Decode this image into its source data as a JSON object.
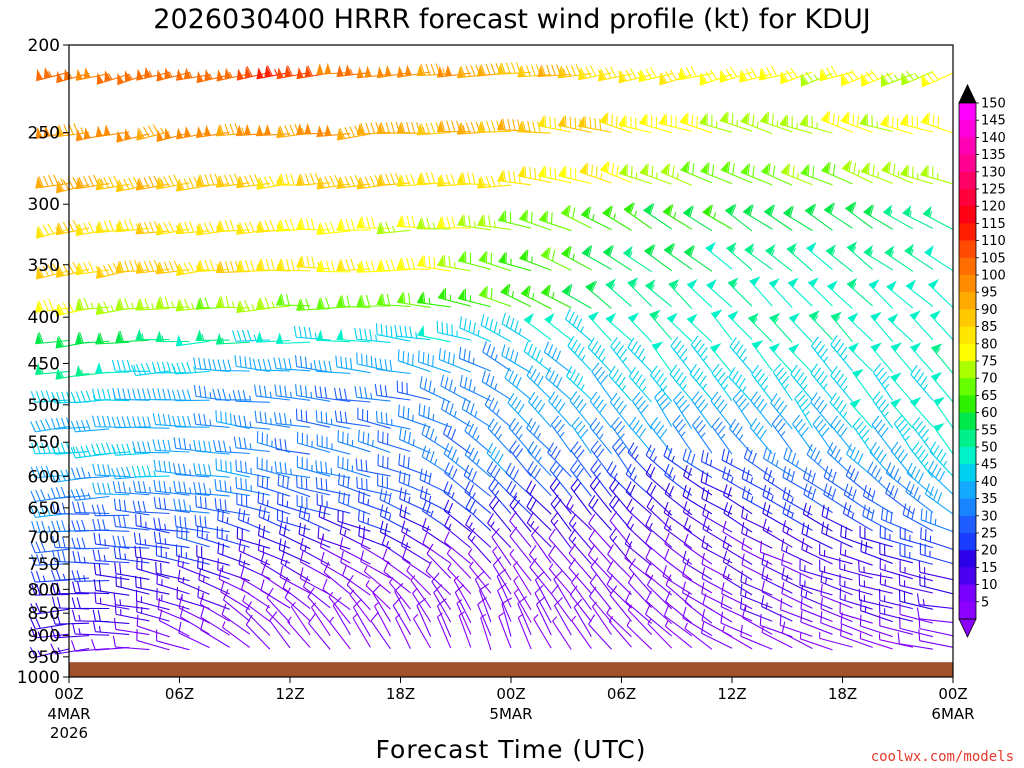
{
  "chart_data": {
    "type": "wind-barb-time-height",
    "title": "2026030400 HRRR forecast wind profile (kt) for KDUJ",
    "xlabel": "Forecast Time (UTC)",
    "ylabel": "",
    "y_scale": "log-pressure (inverted)",
    "ylim": [
      1000,
      200
    ],
    "y_ticks": [
      200,
      250,
      300,
      350,
      400,
      450,
      500,
      550,
      600,
      650,
      700,
      750,
      800,
      850,
      900,
      950,
      1000
    ],
    "xlim_hours": [
      0,
      48
    ],
    "x_ticks": [
      {
        "hour": 0,
        "label": "00Z",
        "sub1": "4MAR",
        "sub2": "2026"
      },
      {
        "hour": 6,
        "label": "06Z",
        "sub1": "",
        "sub2": ""
      },
      {
        "hour": 12,
        "label": "12Z",
        "sub1": "",
        "sub2": ""
      },
      {
        "hour": 18,
        "label": "18Z",
        "sub1": "",
        "sub2": ""
      },
      {
        "hour": 24,
        "label": "00Z",
        "sub1": "5MAR",
        "sub2": ""
      },
      {
        "hour": 30,
        "label": "06Z",
        "sub1": "",
        "sub2": ""
      },
      {
        "hour": 36,
        "label": "12Z",
        "sub1": "",
        "sub2": ""
      },
      {
        "hour": 42,
        "label": "18Z",
        "sub1": "",
        "sub2": ""
      },
      {
        "hour": 48,
        "label": "00Z",
        "sub1": "6MAR",
        "sub2": ""
      }
    ],
    "surface_pressure_hpa": 963,
    "surface_color": "#a0522d",
    "colorbar": {
      "unit": "kt",
      "levels": [
        5,
        10,
        15,
        20,
        25,
        30,
        35,
        40,
        45,
        50,
        55,
        60,
        65,
        70,
        75,
        80,
        85,
        90,
        95,
        100,
        105,
        110,
        115,
        120,
        125,
        130,
        135,
        140,
        145,
        150
      ],
      "colors": [
        "#8c00ff",
        "#7a00ff",
        "#4a00f0",
        "#2b00e8",
        "#1a3cff",
        "#1e5eff",
        "#1a84ff",
        "#12a9ff",
        "#00d0f0",
        "#00f2c8",
        "#00f08c",
        "#00e84a",
        "#2ef000",
        "#66ff00",
        "#aaff00",
        "#ffff00",
        "#ffe600",
        "#ffc800",
        "#ffaa00",
        "#ff8c00",
        "#ff6e00",
        "#ff4a00",
        "#ff1e00",
        "#ff0014",
        "#ff003c",
        "#ff0064",
        "#ff0090",
        "#ff00b4",
        "#ff00dc",
        "#ff00ff"
      ]
    },
    "profile_levels_hpa": [
      215,
      250,
      285,
      320,
      355,
      390,
      425,
      460,
      495,
      530,
      565,
      600,
      635,
      670,
      700,
      730,
      760,
      790,
      820,
      850,
      880,
      910,
      935,
      955
    ],
    "speed_profile_kt": [
      [
        105,
        105,
        110,
        100,
        95,
        88,
        80,
        78
      ],
      [
        100,
        100,
        98,
        95,
        92,
        85,
        75,
        80
      ],
      [
        95,
        92,
        88,
        90,
        85,
        80,
        70,
        75
      ],
      [
        88,
        85,
        85,
        80,
        75,
        65,
        60,
        58
      ],
      [
        90,
        88,
        85,
        80,
        72,
        62,
        55,
        52
      ],
      [
        78,
        75,
        72,
        70,
        65,
        58,
        52,
        50
      ],
      [
        62,
        55,
        48,
        45,
        45,
        50,
        52,
        50
      ],
      [
        55,
        45,
        40,
        38,
        40,
        45,
        48,
        50
      ],
      [
        48,
        40,
        35,
        33,
        35,
        45,
        45,
        48
      ],
      [
        42,
        40,
        35,
        32,
        35,
        42,
        40,
        50
      ],
      [
        45,
        42,
        35,
        32,
        35,
        40,
        35,
        48
      ],
      [
        40,
        40,
        35,
        32,
        35,
        30,
        25,
        45
      ],
      [
        38,
        35,
        30,
        30,
        30,
        25,
        22,
        40
      ],
      [
        35,
        30,
        28,
        25,
        22,
        20,
        18,
        35
      ],
      [
        32,
        28,
        25,
        22,
        18,
        15,
        15,
        30
      ],
      [
        30,
        25,
        20,
        15,
        12,
        12,
        12,
        25
      ],
      [
        28,
        22,
        15,
        10,
        10,
        10,
        12,
        20
      ],
      [
        25,
        18,
        12,
        8,
        8,
        10,
        12,
        18
      ],
      [
        22,
        15,
        10,
        8,
        8,
        10,
        12,
        15
      ],
      [
        20,
        15,
        10,
        8,
        8,
        10,
        12,
        15
      ],
      [
        18,
        12,
        8,
        8,
        8,
        10,
        12,
        12
      ],
      [
        15,
        10,
        8,
        8,
        8,
        8,
        10,
        10
      ],
      [
        12,
        8,
        8,
        6,
        6,
        8,
        8,
        8
      ],
      [
        8,
        6,
        6,
        5,
        5,
        6,
        6,
        6
      ]
    ],
    "direction_profile_deg": [
      [
        255,
        255,
        260,
        265,
        265,
        260,
        255,
        250
      ],
      [
        260,
        260,
        262,
        265,
        270,
        285,
        290,
        285
      ],
      [
        260,
        260,
        265,
        265,
        270,
        290,
        295,
        290
      ],
      [
        260,
        262,
        265,
        268,
        280,
        300,
        305,
        300
      ],
      [
        260,
        262,
        268,
        270,
        285,
        305,
        310,
        305
      ],
      [
        260,
        265,
        268,
        272,
        290,
        310,
        315,
        310
      ],
      [
        262,
        265,
        272,
        275,
        295,
        315,
        318,
        315
      ],
      [
        262,
        268,
        275,
        278,
        300,
        320,
        320,
        318
      ],
      [
        265,
        270,
        278,
        280,
        305,
        322,
        322,
        320
      ],
      [
        265,
        272,
        280,
        282,
        310,
        325,
        325,
        322
      ],
      [
        265,
        272,
        282,
        285,
        315,
        325,
        322,
        325
      ],
      [
        265,
        272,
        282,
        285,
        315,
        325,
        300,
        320
      ],
      [
        265,
        275,
        285,
        288,
        315,
        320,
        300,
        310
      ],
      [
        265,
        278,
        290,
        290,
        318,
        318,
        300,
        300
      ],
      [
        265,
        280,
        290,
        292,
        320,
        318,
        300,
        290
      ],
      [
        265,
        280,
        292,
        295,
        320,
        318,
        300,
        285
      ],
      [
        265,
        282,
        295,
        298,
        322,
        318,
        300,
        280
      ],
      [
        265,
        285,
        300,
        305,
        325,
        318,
        300,
        280
      ],
      [
        265,
        285,
        300,
        310,
        330,
        320,
        300,
        280
      ],
      [
        265,
        285,
        305,
        320,
        335,
        320,
        300,
        280
      ],
      [
        262,
        290,
        320,
        330,
        340,
        320,
        300,
        280
      ],
      [
        258,
        290,
        320,
        330,
        340,
        320,
        300,
        280
      ],
      [
        250,
        285,
        320,
        330,
        340,
        320,
        300,
        280
      ],
      [
        240,
        280,
        320,
        330,
        340,
        320,
        300,
        280
      ]
    ],
    "profile_note_hours": [
      0,
      6,
      12,
      18,
      24,
      30,
      36,
      48
    ]
  },
  "credit": "coolwx.com/models"
}
